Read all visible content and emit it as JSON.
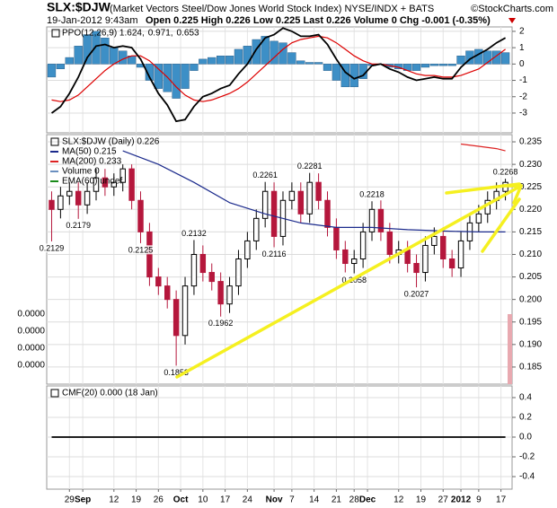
{
  "header": {
    "symbol": "SLX:$DJW",
    "description": "(Market Vectors Steel/Dow Jones World Stock Index) NYSE/INDX + BATS",
    "credit": "©StockCharts.com",
    "date": "19-Jan-2012 9:43am",
    "quote": "Open 0.225 High 0.226 Low 0.225 Last 0.226 Volume 0 Chg -0.001 (-0.35%)"
  },
  "chart_data": [
    {
      "type": "line",
      "xlim": [
        -4.5,
        99.5
      ],
      "ylim": [
        -4.21,
        2.27
      ],
      "yticks": [
        -3,
        -2,
        -1,
        0,
        1,
        2
      ],
      "grid": true,
      "x": [
        -4,
        -2,
        0,
        2,
        4,
        6,
        8,
        10,
        12,
        14,
        16,
        18,
        20,
        22,
        24,
        26,
        28,
        30,
        32,
        34,
        36,
        38,
        40,
        42,
        44,
        46,
        48,
        50,
        52,
        54,
        56,
        58,
        60,
        62,
        64,
        66,
        68,
        70,
        72,
        74,
        76,
        78,
        80,
        82,
        84,
        86,
        88,
        90,
        92,
        94,
        96,
        98
      ],
      "series": [
        {
          "name": "0.653",
          "color": "#3d8fc6",
          "style": "bar",
          "values": [
            -0.8,
            -0.3,
            0.4,
            1.1,
            1.8,
            2.0,
            1.6,
            1.0,
            0.8,
            0.5,
            -0.2,
            -1.0,
            -1.5,
            -1.7,
            -2.1,
            -1.5,
            -0.4,
            0.3,
            0.4,
            0.5,
            0.5,
            0.9,
            1.1,
            1.5,
            1.7,
            1.4,
            1.3,
            0.7,
            0.2,
            0.1,
            0.1,
            -0.4,
            -1.0,
            -1.4,
            -1.4,
            -0.9,
            -0.1,
            0.0,
            -0.2,
            -0.3,
            -0.4,
            -0.4,
            -0.2,
            -0.1,
            -0.1,
            -0.1,
            0.5,
            0.8,
            0.9,
            0.8,
            0.8,
            0.7
          ]
        },
        {
          "name": "0.971,",
          "color": "#dd0000",
          "values": [
            -2.2,
            -2.3,
            -2.2,
            -1.9,
            -1.4,
            -0.9,
            -0.4,
            0.0,
            0.3,
            0.5,
            0.5,
            0.2,
            -0.3,
            -0.8,
            -1.4,
            -1.9,
            -2.2,
            -2.3,
            -2.2,
            -2.0,
            -1.8,
            -1.5,
            -1.1,
            -0.6,
            -0.1,
            0.4,
            0.9,
            1.3,
            1.5,
            1.6,
            1.7,
            1.6,
            1.3,
            0.9,
            0.5,
            0.2,
            0.0,
            0.0,
            -0.1,
            -0.2,
            -0.4,
            -0.6,
            -0.7,
            -0.7,
            -0.8,
            -0.8,
            -0.7,
            -0.5,
            -0.3,
            0.1,
            0.5,
            0.9
          ]
        },
        {
          "name": "PPO(12,26,9) 1.624,",
          "color": "#000000",
          "values": [
            -3.0,
            -2.6,
            -1.8,
            -0.8,
            0.4,
            1.1,
            1.2,
            1.0,
            1.1,
            1.0,
            0.3,
            -0.8,
            -1.8,
            -2.5,
            -3.5,
            -3.4,
            -2.6,
            -2.0,
            -1.8,
            -1.5,
            -1.3,
            -0.6,
            0.0,
            0.9,
            1.6,
            1.8,
            2.2,
            2.0,
            1.7,
            1.7,
            1.8,
            1.2,
            0.3,
            -0.5,
            -0.9,
            -0.7,
            -0.1,
            0.0,
            -0.3,
            -0.5,
            -0.8,
            -1.0,
            -0.9,
            -0.8,
            -0.9,
            -0.9,
            -0.2,
            0.3,
            0.6,
            0.9,
            1.3,
            1.6
          ]
        }
      ]
    },
    {
      "type": "candlestick",
      "name": "SLX:$DJW (Daily) 0.226",
      "xlim": [
        -4.5,
        99.5
      ],
      "ylim": [
        0.1812,
        0.2366
      ],
      "yticks": [
        0.185,
        {
          "value": 0.19,
          "label": "0.190"
        },
        0.195,
        {
          "value": 0.2,
          "label": "0.200"
        },
        0.205,
        {
          "value": 0.21,
          "label": "0.210"
        },
        0.215,
        {
          "value": 0.22,
          "label": "0.220"
        },
        0.225,
        {
          "value": 0.23,
          "label": "0.230"
        },
        0.235
      ],
      "grid": true,
      "up_color": "#000000",
      "down_color": "#b5173c",
      "x": [
        -4,
        -2,
        0,
        2,
        4,
        6,
        8,
        10,
        12,
        14,
        16,
        18,
        20,
        22,
        24,
        26,
        28,
        30,
        32,
        34,
        36,
        38,
        40,
        42,
        44,
        46,
        48,
        50,
        52,
        54,
        56,
        58,
        60,
        62,
        64,
        66,
        68,
        70,
        72,
        74,
        76,
        78,
        80,
        82,
        84,
        86,
        88,
        90,
        92,
        94,
        96,
        98
      ],
      "open": [
        0.222,
        0.22,
        0.223,
        0.224,
        0.221,
        0.224,
        0.227,
        0.225,
        0.226,
        0.229,
        0.222,
        0.215,
        0.205,
        0.203,
        0.2,
        0.192,
        0.203,
        0.21,
        0.206,
        0.204,
        0.199,
        0.203,
        0.209,
        0.213,
        0.218,
        0.224,
        0.214,
        0.222,
        0.224,
        0.219,
        0.226,
        0.222,
        0.216,
        0.211,
        0.208,
        0.209,
        0.215,
        0.22,
        0.215,
        0.21,
        0.211,
        0.208,
        0.206,
        0.212,
        0.214,
        0.209,
        0.207,
        0.213,
        0.217,
        0.219,
        0.222,
        0.224
      ],
      "high": [
        0.224,
        0.225,
        0.226,
        0.226,
        0.226,
        0.229,
        0.229,
        0.228,
        0.23,
        0.23,
        0.224,
        0.217,
        0.207,
        0.205,
        0.202,
        0.205,
        0.2132,
        0.212,
        0.208,
        0.206,
        0.205,
        0.211,
        0.215,
        0.22,
        0.2261,
        0.226,
        0.224,
        0.226,
        0.226,
        0.2281,
        0.228,
        0.224,
        0.218,
        0.213,
        0.211,
        0.217,
        0.2218,
        0.222,
        0.217,
        0.213,
        0.213,
        0.21,
        0.214,
        0.216,
        0.216,
        0.211,
        0.215,
        0.219,
        0.221,
        0.224,
        0.226,
        0.2268
      ],
      "low": [
        0.2129,
        0.218,
        0.221,
        0.2179,
        0.219,
        0.222,
        0.223,
        0.223,
        0.224,
        0.22,
        0.2125,
        0.203,
        0.201,
        0.198,
        0.1853,
        0.19,
        0.201,
        0.204,
        0.202,
        0.1962,
        0.197,
        0.201,
        0.207,
        0.211,
        0.216,
        0.2116,
        0.212,
        0.22,
        0.217,
        0.217,
        0.22,
        0.214,
        0.209,
        0.206,
        0.2058,
        0.207,
        0.213,
        0.213,
        0.208,
        0.208,
        0.206,
        0.2027,
        0.204,
        0.21,
        0.207,
        0.205,
        0.205,
        0.211,
        0.215,
        0.217,
        0.22,
        0.222
      ],
      "close": [
        0.22,
        0.223,
        0.224,
        0.221,
        0.224,
        0.227,
        0.225,
        0.226,
        0.229,
        0.222,
        0.215,
        0.205,
        0.203,
        0.2,
        0.192,
        0.203,
        0.21,
        0.206,
        0.204,
        0.199,
        0.203,
        0.209,
        0.213,
        0.218,
        0.224,
        0.214,
        0.222,
        0.224,
        0.219,
        0.226,
        0.222,
        0.216,
        0.211,
        0.208,
        0.209,
        0.215,
        0.22,
        0.215,
        0.21,
        0.211,
        0.208,
        0.206,
        0.212,
        0.214,
        0.209,
        0.207,
        0.213,
        0.217,
        0.219,
        0.222,
        0.224,
        0.226
      ],
      "annotations": [
        0.2129,
        0.2179,
        0.2125,
        0.2132,
        0.1962,
        0.1853,
        0.2261,
        0.2116,
        0.2281,
        0.2218,
        0.2058,
        0.2027,
        0.2268
      ],
      "series": [
        {
          "name": "MA(50) 0.215",
          "color": "#1b2a8c",
          "x": [
            12,
            20,
            28,
            36,
            44,
            52,
            60,
            68,
            76,
            84,
            92,
            98
          ],
          "values": [
            0.233,
            0.23,
            0.226,
            0.2215,
            0.219,
            0.217,
            0.216,
            0.216,
            0.2155,
            0.2152,
            0.215,
            0.215
          ]
        },
        {
          "name": "MA(200) 0.233",
          "color": "#dd2222",
          "x": [
            88,
            92,
            96,
            98
          ],
          "values": [
            0.2345,
            0.234,
            0.2335,
            0.233
          ]
        }
      ],
      "legend_extra": [
        {
          "name": "Volume 0",
          "color": "#6a8fc0"
        },
        {
          "name": "EMA(60) undef",
          "color": "#1a8a1a"
        }
      ],
      "volume_ticks": [
        "0.0000",
        "0.0000",
        "0.0000",
        "0.0000"
      ]
    },
    {
      "type": "line",
      "xlim": [
        -4.5,
        99.5
      ],
      "ylim": [
        -0.527,
        0.518
      ],
      "yticks": [
        -0.4,
        -0.2,
        {
          "value": 0,
          "label": "0.0"
        },
        0.2,
        0.4
      ],
      "grid": true,
      "x": [
        -4,
        98
      ],
      "series": [
        {
          "name": "CMF(20) 0.000 (18 Jan)",
          "color": "#000000",
          "values": [
            0,
            0
          ]
        }
      ],
      "xticks": [
        {
          "value": 0,
          "label": "29"
        },
        {
          "value": 3,
          "label": "Sep",
          "bold": true
        },
        {
          "value": 10,
          "label": "12"
        },
        {
          "value": 15,
          "label": "19"
        },
        {
          "value": 20,
          "label": "26"
        },
        {
          "value": 25,
          "label": "Oct",
          "bold": true
        },
        {
          "value": 30,
          "label": "10"
        },
        {
          "value": 35,
          "label": "17"
        },
        {
          "value": 40,
          "label": "24"
        },
        {
          "value": 46,
          "label": "Nov",
          "bold": true
        },
        {
          "value": 50,
          "label": "7"
        },
        {
          "value": 55,
          "label": "14"
        },
        {
          "value": 60,
          "label": "21"
        },
        {
          "value": 64,
          "label": "28"
        },
        {
          "value": 67,
          "label": "Dec",
          "bold": true
        },
        {
          "value": 74,
          "label": "12"
        },
        {
          "value": 79,
          "label": "19"
        },
        {
          "value": 84,
          "label": "27"
        },
        {
          "value": 88,
          "label": "2012",
          "bold": true
        },
        {
          "value": 92,
          "label": "9"
        },
        {
          "value": 97,
          "label": "17"
        }
      ]
    }
  ]
}
